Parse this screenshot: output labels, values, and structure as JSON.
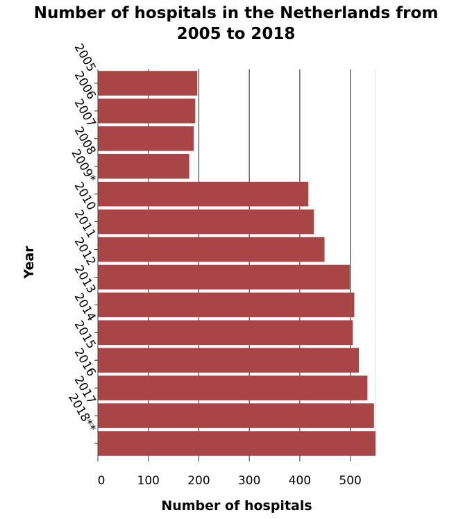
{
  "chart_data": {
    "type": "bar",
    "orientation": "horizontal",
    "title_lines": [
      "Number of hospitals in the Netherlands from",
      "2005 to 2018"
    ],
    "xlabel": "Number of hospitals",
    "ylabel": "Year",
    "categories": [
      "2005",
      "2006",
      "2007",
      "2008",
      "2009*",
      "2010",
      "2011",
      "2012",
      "2013",
      "2014",
      "2015",
      "2016",
      "2017",
      "2018**"
    ],
    "values": [
      197,
      193,
      190,
      181,
      417,
      428,
      449,
      499,
      508,
      505,
      517,
      534,
      547,
      550
    ],
    "xlim": [
      0,
      550
    ],
    "xticks": [
      0,
      100,
      200,
      300,
      400,
      500
    ],
    "grid": "vertical",
    "bar_color": "#a84646",
    "grid_color": "#444444"
  }
}
